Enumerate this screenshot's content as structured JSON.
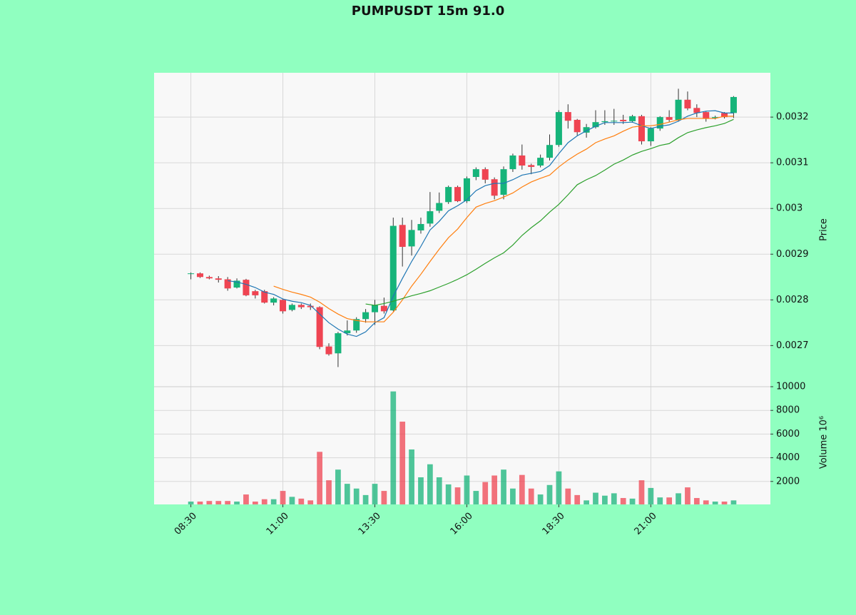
{
  "chart_data": [
    {
      "type": "candlestick",
      "title": "PUMPUSDT 15m 91.0",
      "y_label": "Price",
      "categories": [
        "08:30",
        null,
        null,
        null,
        null,
        null,
        null,
        null,
        null,
        null,
        "11:00",
        null,
        null,
        null,
        null,
        null,
        null,
        null,
        null,
        null,
        "13:30",
        null,
        null,
        null,
        null,
        null,
        null,
        null,
        null,
        null,
        "16:00",
        null,
        null,
        null,
        null,
        null,
        null,
        null,
        null,
        null,
        "18:30",
        null,
        null,
        null,
        null,
        null,
        null,
        null,
        null,
        null,
        "21:00",
        null,
        null,
        null,
        null,
        null,
        null,
        null,
        null,
        null
      ],
      "open": [
        0.002857,
        0.002858,
        0.00285,
        0.002847,
        0.002845,
        0.002827,
        0.002844,
        0.002819,
        0.002819,
        0.002794,
        0.0028,
        0.002778,
        0.002789,
        0.002787,
        0.002784,
        0.002698,
        0.002683,
        0.002727,
        0.002733,
        0.002758,
        0.002773,
        0.002787,
        0.002777,
        0.002964,
        0.002917,
        0.002952,
        0.002967,
        0.002995,
        0.003014,
        0.003047,
        0.003016,
        0.003069,
        0.003086,
        0.003064,
        0.00303,
        0.003086,
        0.003116,
        0.003095,
        0.003094,
        0.003111,
        0.003139,
        0.003211,
        0.003194,
        0.003166,
        0.003178,
        0.003189,
        0.003191,
        0.003194,
        0.003191,
        0.003202,
        0.003147,
        0.003175,
        0.0032,
        0.003194,
        0.003238,
        0.00322,
        0.003211,
        0.003198,
        0.003209,
        0.003209
      ],
      "high": [
        0.00286,
        0.00286,
        0.002853,
        0.002852,
        0.00285,
        0.002847,
        0.002846,
        0.002822,
        0.002822,
        0.002806,
        0.002802,
        0.002792,
        0.002792,
        0.002792,
        0.002786,
        0.002705,
        0.00273,
        0.002755,
        0.002762,
        0.00278,
        0.0028,
        0.002805,
        0.00298,
        0.00298,
        0.002975,
        0.00298,
        0.003036,
        0.003035,
        0.00305,
        0.00305,
        0.00307,
        0.00309,
        0.00309,
        0.003068,
        0.003092,
        0.00312,
        0.00314,
        0.003098,
        0.003118,
        0.003162,
        0.003215,
        0.003228,
        0.003196,
        0.003185,
        0.003215,
        0.003215,
        0.003218,
        0.003205,
        0.003205,
        0.003205,
        0.003178,
        0.003202,
        0.003215,
        0.003262,
        0.003256,
        0.003228,
        0.003212,
        0.003203,
        0.003211,
        0.003246
      ],
      "low": [
        0.002845,
        0.002848,
        0.002845,
        0.002838,
        0.00282,
        0.002825,
        0.002808,
        0.002803,
        0.002792,
        0.002788,
        0.00277,
        0.002775,
        0.00278,
        0.002778,
        0.002692,
        0.002678,
        0.002653,
        0.002722,
        0.002728,
        0.00275,
        0.002745,
        0.00277,
        0.002775,
        0.002873,
        0.002897,
        0.002945,
        0.00296,
        0.00299,
        0.00301,
        0.003014,
        0.003012,
        0.003062,
        0.003055,
        0.00302,
        0.00302,
        0.00308,
        0.003085,
        0.003075,
        0.00309,
        0.003105,
        0.003135,
        0.003175,
        0.00316,
        0.003155,
        0.003175,
        0.003183,
        0.003183,
        0.003185,
        0.003188,
        0.00314,
        0.003137,
        0.00317,
        0.00319,
        0.00319,
        0.003215,
        0.0032,
        0.00319,
        0.003195,
        0.003197,
        0.003198
      ],
      "close": [
        0.002858,
        0.00285,
        0.002847,
        0.002844,
        0.002825,
        0.002842,
        0.00281,
        0.00281,
        0.002794,
        0.002803,
        0.002775,
        0.002789,
        0.002784,
        0.002784,
        0.002697,
        0.002681,
        0.002727,
        0.002733,
        0.002758,
        0.002773,
        0.002788,
        0.002775,
        0.002962,
        0.002916,
        0.002953,
        0.002966,
        0.002994,
        0.003012,
        0.003047,
        0.003016,
        0.003066,
        0.003086,
        0.003063,
        0.003028,
        0.003086,
        0.003116,
        0.003094,
        0.003091,
        0.003111,
        0.003139,
        0.003211,
        0.003192,
        0.003167,
        0.003178,
        0.003189,
        0.003191,
        0.003192,
        0.003191,
        0.003202,
        0.003147,
        0.003175,
        0.0032,
        0.003194,
        0.003238,
        0.003219,
        0.003209,
        0.003197,
        0.0032,
        0.0032,
        0.003244
      ],
      "up_color": "#16b47a",
      "down_color": "#ef4452",
      "series": [
        {
          "color": "#1f77b4",
          "values": [
            null,
            null,
            null,
            null,
            0.002842,
            0.002839,
            0.002834,
            0.002827,
            0.002817,
            0.002812,
            0.002802,
            0.002797,
            0.002794,
            0.002788,
            0.002769,
            0.00275,
            0.002736,
            0.002725,
            0.00272,
            0.00273,
            0.00275,
            0.002761,
            0.002808,
            0.002847,
            0.002884,
            0.002917,
            0.002953,
            0.002972,
            0.002995,
            0.003006,
            0.003019,
            0.003039,
            0.00305,
            0.003055,
            0.003055,
            0.003063,
            0.003073,
            0.003077,
            0.003081,
            0.003094,
            0.00312,
            0.003144,
            0.003159,
            0.00317,
            0.00318,
            0.003188,
            0.003188,
            0.003188,
            0.003189,
            0.003181,
            0.003175,
            0.00318,
            0.003183,
            0.003191,
            0.003202,
            0.003209,
            0.003213,
            0.003214,
            0.003209,
            0.003209
          ]
        },
        {
          "color": "#ff7f0e",
          "values": [
            null,
            null,
            null,
            null,
            null,
            null,
            null,
            null,
            null,
            0.00283,
            0.002823,
            0.002817,
            0.002812,
            0.002806,
            0.002795,
            0.002781,
            0.002769,
            0.002759,
            0.002755,
            0.002752,
            0.002752,
            0.002752,
            0.002773,
            0.0028,
            0.00283,
            0.002856,
            0.002884,
            0.002911,
            0.002936,
            0.002955,
            0.00298,
            0.003003,
            0.003011,
            0.003017,
            0.003025,
            0.003034,
            0.003047,
            0.003058,
            0.003066,
            0.003073,
            0.003091,
            0.003106,
            0.003119,
            0.00313,
            0.003144,
            0.003152,
            0.003159,
            0.003169,
            0.003178,
            0.003181,
            0.003181,
            0.003184,
            0.003189,
            0.003194,
            0.003197,
            0.003197,
            0.003197,
            0.003197,
            0.003202,
            0.003202
          ]
        },
        {
          "color": "#2ca02c",
          "values": [
            null,
            null,
            null,
            null,
            null,
            null,
            null,
            null,
            null,
            null,
            null,
            null,
            null,
            null,
            null,
            null,
            null,
            null,
            null,
            0.002791,
            0.002788,
            0.002792,
            0.002797,
            0.002803,
            0.002809,
            0.002814,
            0.00282,
            0.002828,
            0.002836,
            0.002845,
            0.002855,
            0.002867,
            0.00288,
            0.002892,
            0.002903,
            0.00292,
            0.002941,
            0.002958,
            0.002973,
            0.002992,
            0.003009,
            0.00303,
            0.003052,
            0.003063,
            0.003072,
            0.003084,
            0.003097,
            0.003106,
            0.003117,
            0.003125,
            0.003131,
            0.003138,
            0.003142,
            0.003155,
            0.003166,
            0.003172,
            0.003177,
            0.003181,
            0.003186,
            0.003195
          ]
        }
      ],
      "ylim": [
        0.00261,
        0.003297
      ],
      "yticks": [
        0.0027,
        0.0028,
        0.0029,
        0.003,
        0.0031,
        0.0032
      ],
      "grid": true
    },
    {
      "type": "bar",
      "y_label": "Volume  10⁶",
      "values": [
        300,
        300,
        350,
        350,
        350,
        300,
        900,
        300,
        500,
        500,
        1200,
        700,
        550,
        400,
        4500,
        2100,
        3000,
        1800,
        1400,
        850,
        1800,
        1200,
        9600,
        7050,
        4700,
        2350,
        3450,
        2350,
        1750,
        1500,
        2500,
        1200,
        1950,
        2500,
        3000,
        1400,
        2550,
        1400,
        900,
        1700,
        2850,
        1400,
        850,
        400,
        1050,
        800,
        1000,
        600,
        550,
        2100,
        1450,
        650,
        650,
        1000,
        1500,
        600,
        400,
        300,
        300,
        400
      ],
      "ylim": [
        60,
        10000
      ],
      "yticks": [
        2000,
        4000,
        6000,
        8000,
        10000
      ],
      "grid": true
    }
  ]
}
